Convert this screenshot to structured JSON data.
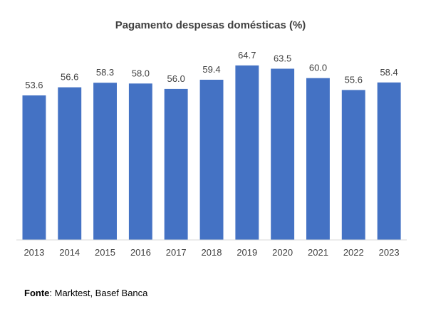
{
  "chart_data": {
    "type": "bar",
    "title": "Pagamento despesas domésticas (%)",
    "categories": [
      "2013",
      "2014",
      "2015",
      "2016",
      "2017",
      "2018",
      "2019",
      "2020",
      "2021",
      "2022",
      "2023"
    ],
    "values": [
      53.6,
      56.6,
      58.3,
      58.0,
      56.0,
      59.4,
      64.7,
      63.5,
      60.0,
      55.6,
      58.4
    ],
    "value_labels": [
      "53.6",
      "56.6",
      "58.3",
      "58.0",
      "56.0",
      "59.4",
      "64.7",
      "63.5",
      "60.0",
      "55.6",
      "58.4"
    ],
    "xlabel": "",
    "ylabel": "",
    "ylim": [
      0,
      66
    ],
    "grid": false,
    "legend": "none",
    "bar_color": "#4472C4"
  },
  "source": {
    "label": "Fonte",
    "text": ": Marktest, Basef Banca"
  }
}
